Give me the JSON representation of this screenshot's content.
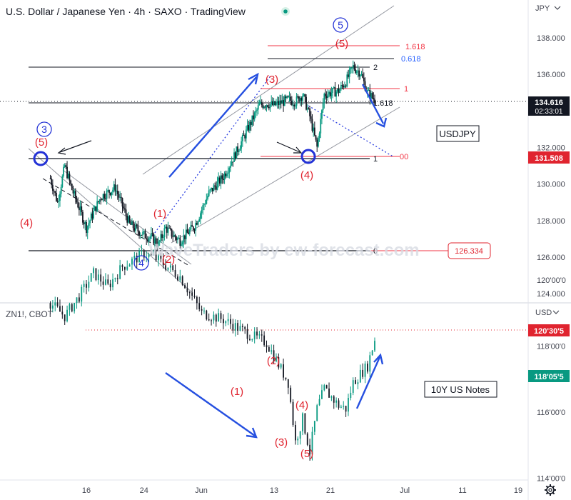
{
  "colors": {
    "up": "#089981",
    "down": "#131722",
    "wave": "#e0242f",
    "circle": "#2332d6",
    "arrow": "#2650e0",
    "price_tag": "#131722",
    "red_tag": "#e0242f"
  },
  "top_panel": {
    "title": "U.S. Dollar / Japanese Yen · 4h · SAXO · TradingView",
    "currency": "JPY",
    "label_box": "USDJPY",
    "watermark": "WaveTraders by ew-forecast.com",
    "price_tag": "134.616",
    "price_tag_time": "02:33:01",
    "level_tag_1": "131.508",
    "level_tag_2": "126.334",
    "fib_labels": {
      "f1618_top": "1.618",
      "f0618": "0.618",
      "f2": "2",
      "f1_red": "1",
      "f1618_mid": "1.618",
      "f1_black": "1",
      "f00": "00",
      "f0": "0"
    },
    "waves": {
      "c5_left": "(5)",
      "c3_left": "3",
      "c4_left": "(4)",
      "c1": "(1)",
      "c2": "(2)",
      "c4_circle": "4",
      "c3_mid": "(3)",
      "c4_mid": "(4)",
      "c5_top": "(5)",
      "c5_circle": "5"
    }
  },
  "bottom_panel": {
    "title": "ZN1!, CBOT",
    "currency": "USD",
    "label_box": "10Y US Notes",
    "price_tag": "118'05'5",
    "level_tag": "120'30'5",
    "waves": {
      "w1": "(1)",
      "w2": "(2)",
      "w3": "(3)",
      "w4": "(4)",
      "w5": "(5)"
    }
  },
  "x_axis": {
    "ticks": [
      "16",
      "24",
      "Jun",
      "13",
      "21",
      "Jul",
      "11",
      "19"
    ],
    "gear_icon": "gear-icon"
  },
  "chart_data": [
    {
      "type": "candlestick",
      "title": "U.S. Dollar / Japanese Yen · 4h · SAXO · TradingView",
      "ylabel": "JPY",
      "ylim": [
        123.2,
        139.8
      ],
      "y_ticks": [
        124.0,
        126.0,
        128.0,
        130.0,
        132.0,
        134.0,
        136.0,
        138.0
      ],
      "close_path": [
        [
          "May 11",
          130.3
        ],
        [
          "May 12",
          129.0
        ],
        [
          "May 13",
          131.0
        ],
        [
          "May 14",
          129.7
        ],
        [
          "May 15",
          128.7
        ],
        [
          "May 16",
          127.6
        ],
        [
          "May 18",
          129.3
        ],
        [
          "May 20",
          129.8
        ],
        [
          "May 22",
          127.8
        ],
        [
          "May 24",
          127.2
        ],
        [
          "May 25",
          127.1
        ],
        [
          "May 26",
          126.7
        ],
        [
          "May 27",
          127.6
        ],
        [
          "May 28",
          127.2
        ],
        [
          "May 29",
          126.9
        ],
        [
          "May 31",
          127.7
        ],
        [
          "Jun 2",
          129.5
        ],
        [
          "Jun 4",
          130.4
        ],
        [
          "Jun 6",
          131.9
        ],
        [
          "Jun 8",
          133.5
        ],
        [
          "Jun 9",
          134.3
        ],
        [
          "Jun 10",
          134.4
        ],
        [
          "Jun 11",
          134.3
        ],
        [
          "Jun 13",
          134.6
        ],
        [
          "Jun 14",
          134.5
        ],
        [
          "Jun 15",
          134.9
        ],
        [
          "Jun 16",
          133.7
        ],
        [
          "Jun 17",
          132.0
        ],
        [
          "Jun 18",
          134.9
        ],
        [
          "Jun 19",
          135.0
        ],
        [
          "Jun 20",
          135.1
        ],
        [
          "Jun 21",
          135.6
        ],
        [
          "Jun 22",
          136.4
        ],
        [
          "Jun 23",
          136.1
        ],
        [
          "Jun 24",
          135.0
        ],
        [
          "Jun 25",
          134.6
        ]
      ],
      "last_price": 134.616,
      "levels": [
        131.508,
        126.334
      ]
    },
    {
      "type": "candlestick",
      "title": "ZN1!, CBOT",
      "ylabel": "USD",
      "y_ticks": [
        "114'00'0",
        "116'00'0",
        "118'00'0",
        "120'00'0"
      ],
      "close_path": [
        [
          "May 11",
          119.3
        ],
        [
          "May 13",
          118.9
        ],
        [
          "May 15",
          119.5
        ],
        [
          "May 17",
          120.2
        ],
        [
          "May 19",
          119.8
        ],
        [
          "May 21",
          120.4
        ],
        [
          "May 24",
          120.8
        ],
        [
          "May 26",
          120.6
        ],
        [
          "May 29",
          120.1
        ],
        [
          "Jun 1",
          119.0
        ],
        [
          "Jun 4",
          118.8
        ],
        [
          "Jun 8",
          118.3
        ],
        [
          "Jun 10",
          118.1
        ],
        [
          "Jun 13",
          116.9
        ],
        [
          "Jun 14",
          115.1
        ],
        [
          "Jun 15",
          115.8
        ],
        [
          "Jun 16",
          114.8
        ],
        [
          "Jun 17",
          116.1
        ],
        [
          "Jun 18",
          116.7
        ],
        [
          "Jun 20",
          116.2
        ],
        [
          "Jun 21",
          116.1
        ],
        [
          "Jun 22",
          116.9
        ],
        [
          "Jun 24",
          117.4
        ],
        [
          "Jun 25",
          118.2
        ]
      ],
      "last_price": "118'05'5",
      "levels": [
        "120'30'5"
      ]
    }
  ]
}
